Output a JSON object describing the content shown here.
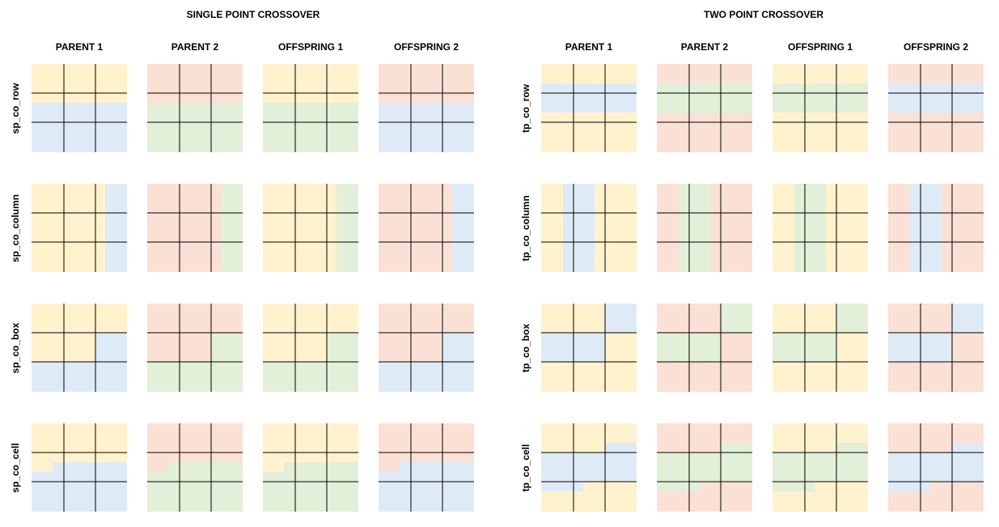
{
  "colors": {
    "yellow": "#fff2cc",
    "red": "#fbe0d5",
    "blue": "#deebf7",
    "green": "#e2efd9",
    "line": "#000000"
  },
  "sections": [
    {
      "title": "SINGLE POINT CROSSOVER",
      "columns": [
        "PARENT 1",
        "PARENT 2",
        "OFFSPRING 1",
        "OFFSPRING 2"
      ],
      "rows": [
        {
          "label": "sp_co_row",
          "grids": [
            {
              "base": "yellow",
              "mask": "spRow",
              "second": "blue"
            },
            {
              "base": "red",
              "mask": "spRow",
              "second": "green"
            },
            {
              "base": "yellow",
              "mask": "spRow",
              "second": "green"
            },
            {
              "base": "red",
              "mask": "spRow",
              "second": "blue"
            }
          ]
        },
        {
          "label": "sp_co_column",
          "grids": [
            {
              "base": "yellow",
              "mask": "spCol",
              "second": "blue"
            },
            {
              "base": "red",
              "mask": "spCol",
              "second": "green"
            },
            {
              "base": "yellow",
              "mask": "spCol",
              "second": "green"
            },
            {
              "base": "red",
              "mask": "spCol",
              "second": "blue"
            }
          ]
        },
        {
          "label": "sp_co_box",
          "grids": [
            {
              "base": "yellow",
              "mask": "spBox",
              "second": "blue"
            },
            {
              "base": "red",
              "mask": "spBox",
              "second": "green"
            },
            {
              "base": "yellow",
              "mask": "spBox",
              "second": "green"
            },
            {
              "base": "red",
              "mask": "spBox",
              "second": "blue"
            }
          ]
        },
        {
          "label": "sp_co_cell",
          "grids": [
            {
              "base": "yellow",
              "mask": "spCell",
              "second": "blue"
            },
            {
              "base": "red",
              "mask": "spCell",
              "second": "green"
            },
            {
              "base": "yellow",
              "mask": "spCell",
              "second": "green"
            },
            {
              "base": "red",
              "mask": "spCell",
              "second": "blue"
            }
          ]
        }
      ]
    },
    {
      "title": "TWO POINT CROSSOVER",
      "columns": [
        "PARENT 1",
        "PARENT 2",
        "OFFSPRING 1",
        "OFFSPRING 2"
      ],
      "rows": [
        {
          "label": "tp_co_row",
          "grids": [
            {
              "base": "yellow",
              "mask": "tpRow",
              "second": "blue"
            },
            {
              "base": "red",
              "mask": "tpRow",
              "second": "green"
            },
            {
              "base": "yellow",
              "mask": "tpRow",
              "second": "green"
            },
            {
              "base": "red",
              "mask": "tpRow",
              "second": "blue"
            }
          ]
        },
        {
          "label": "tp_co_column",
          "grids": [
            {
              "base": "yellow",
              "mask": "tpCol",
              "second": "blue"
            },
            {
              "base": "red",
              "mask": "tpCol",
              "second": "green"
            },
            {
              "base": "yellow",
              "mask": "tpCol",
              "second": "green"
            },
            {
              "base": "red",
              "mask": "tpCol",
              "second": "blue"
            }
          ]
        },
        {
          "label": "tp_co_box",
          "grids": [
            {
              "base": "yellow",
              "mask": "tpBox",
              "second": "blue"
            },
            {
              "base": "red",
              "mask": "tpBox",
              "second": "green"
            },
            {
              "base": "yellow",
              "mask": "tpBox",
              "second": "green"
            },
            {
              "base": "red",
              "mask": "tpBox",
              "second": "blue"
            }
          ]
        },
        {
          "label": "tp_co_cell",
          "grids": [
            {
              "base": "yellow",
              "mask": "tpCell",
              "second": "blue"
            },
            {
              "base": "red",
              "mask": "tpCell",
              "second": "green"
            },
            {
              "base": "yellow",
              "mask": "tpCell",
              "second": "green"
            },
            {
              "base": "red",
              "mask": "tpCell",
              "second": "blue"
            }
          ]
        }
      ]
    }
  ]
}
